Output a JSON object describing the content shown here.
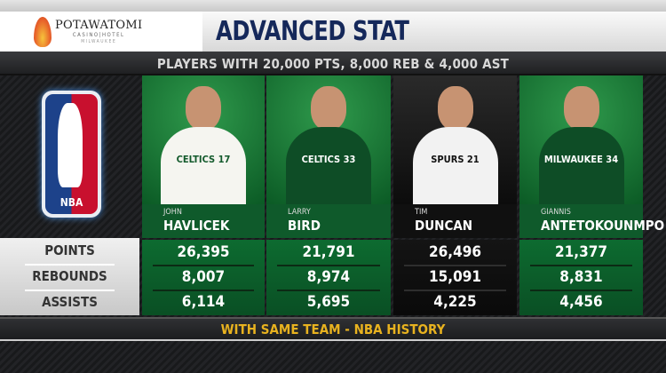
{
  "sponsor": {
    "name": "POTAWATOMI",
    "line2": "CASINO|HOTEL",
    "line3": "MILWAUKEE"
  },
  "title": "ADVANCED STAT",
  "subtitle": "PLAYERS WITH 20,000 PTS, 8,000 REB & 4,000 AST",
  "league_logo": "NBA",
  "stat_labels": [
    "POINTS",
    "REBOUNDS",
    "ASSISTS"
  ],
  "players": [
    {
      "first": "JOHN",
      "last": "HAVLICEK",
      "jersey": "CELTICS 17",
      "theme": "green",
      "points": "26,395",
      "rebounds": "8,007",
      "assists": "6,114"
    },
    {
      "first": "LARRY",
      "last": "BIRD",
      "jersey": "CELTICS 33",
      "theme": "green",
      "points": "21,791",
      "rebounds": "8,974",
      "assists": "5,695"
    },
    {
      "first": "TIM",
      "last": "DUNCAN",
      "jersey": "SPURS 21",
      "theme": "dark",
      "points": "26,496",
      "rebounds": "15,091",
      "assists": "4,225"
    },
    {
      "first": "GIANNIS",
      "last": "ANTETOKOUNMPO",
      "jersey": "MILWAUKEE 34",
      "theme": "green",
      "points": "21,377",
      "rebounds": "8,831",
      "assists": "4,456"
    }
  ],
  "footer": "WITH SAME TEAM - NBA HISTORY",
  "colors": {
    "title": "#15285a",
    "celtics_green": "#0d6b30",
    "bucks_green": "#0a4f24",
    "spurs": "#101010",
    "footer_text": "#e8b21f"
  }
}
